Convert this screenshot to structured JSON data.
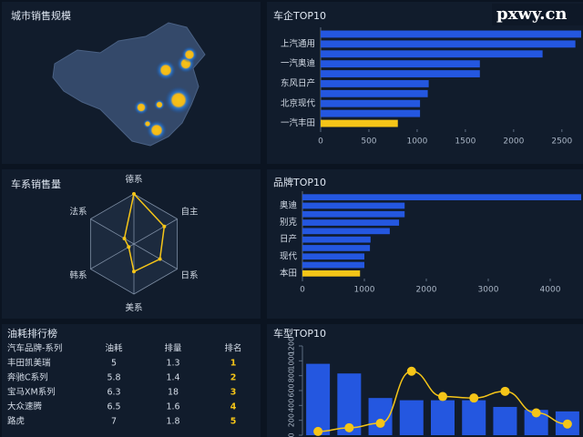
{
  "watermark": "pxwy.cn",
  "map": {
    "title": "城市销售规模"
  },
  "chart_data": [
    {
      "type": "hbar",
      "title": "车企TOP10",
      "categories": [
        null,
        "上汽通用",
        null,
        "一汽奥迪",
        null,
        "东风日产",
        null,
        "北京现代",
        null,
        "一汽丰田"
      ],
      "values": [
        2700,
        2640,
        2300,
        1650,
        1650,
        1120,
        1110,
        1030,
        1030,
        800
      ],
      "colors": [
        "#2457e0",
        "#2457e0",
        "#2457e0",
        "#2457e0",
        "#2457e0",
        "#2457e0",
        "#2457e0",
        "#2457e0",
        "#2457e0",
        "#f5c518"
      ],
      "xlim": [
        0,
        2700
      ],
      "xticks": [
        0,
        500,
        1000,
        1500,
        2000,
        2500
      ]
    },
    {
      "type": "radar",
      "title": "车系销售量",
      "indicators": [
        "德系",
        "自主",
        "日系",
        "美系",
        "韩系",
        "法系"
      ],
      "values": [
        100,
        70,
        60,
        55,
        12,
        22
      ],
      "rlim": [
        0,
        100
      ],
      "color": "#f5c518"
    },
    {
      "type": "hbar",
      "title": "品牌TOP10",
      "categories": [
        null,
        "奥迪",
        null,
        "别克",
        null,
        "日产",
        null,
        "现代",
        null,
        "本田"
      ],
      "values": [
        4500,
        1650,
        1650,
        1560,
        1410,
        1100,
        1090,
        1000,
        1000,
        930
      ],
      "colors": [
        "#2457e0",
        "#2457e0",
        "#2457e0",
        "#2457e0",
        "#2457e0",
        "#2457e0",
        "#2457e0",
        "#2457e0",
        "#2457e0",
        "#f5c518"
      ],
      "xlim": [
        0,
        4500
      ],
      "xticks": [
        0,
        1000,
        2000,
        3000,
        4000
      ]
    },
    {
      "type": "combo",
      "title": "车型TOP10",
      "series": [
        {
          "type": "bar",
          "color": "#2457e0",
          "values": [
            960,
            830,
            500,
            470,
            470,
            470,
            380,
            340,
            320
          ]
        },
        {
          "type": "line",
          "color": "#f5c518",
          "values": [
            50,
            100,
            160,
            860,
            520,
            500,
            590,
            300,
            150
          ]
        }
      ],
      "ylim": [
        0,
        1200
      ],
      "yticks": [
        0,
        200,
        400,
        600,
        800,
        1000,
        1200
      ]
    }
  ],
  "table": {
    "title": "油耗排行榜",
    "header": [
      "汽车品牌-系列",
      "油耗",
      "排量",
      "排名"
    ],
    "rows": [
      [
        "丰田凯美瑞",
        "5",
        "1.3",
        "1"
      ],
      [
        "奔驰C系列",
        "5.8",
        "1.4",
        "2"
      ],
      [
        "宝马XM系列",
        "6.3",
        "18",
        "3"
      ],
      [
        "大众速腾",
        "6.5",
        "1.6",
        "4"
      ],
      [
        "路虎",
        "7",
        "1.8",
        "5"
      ]
    ]
  }
}
